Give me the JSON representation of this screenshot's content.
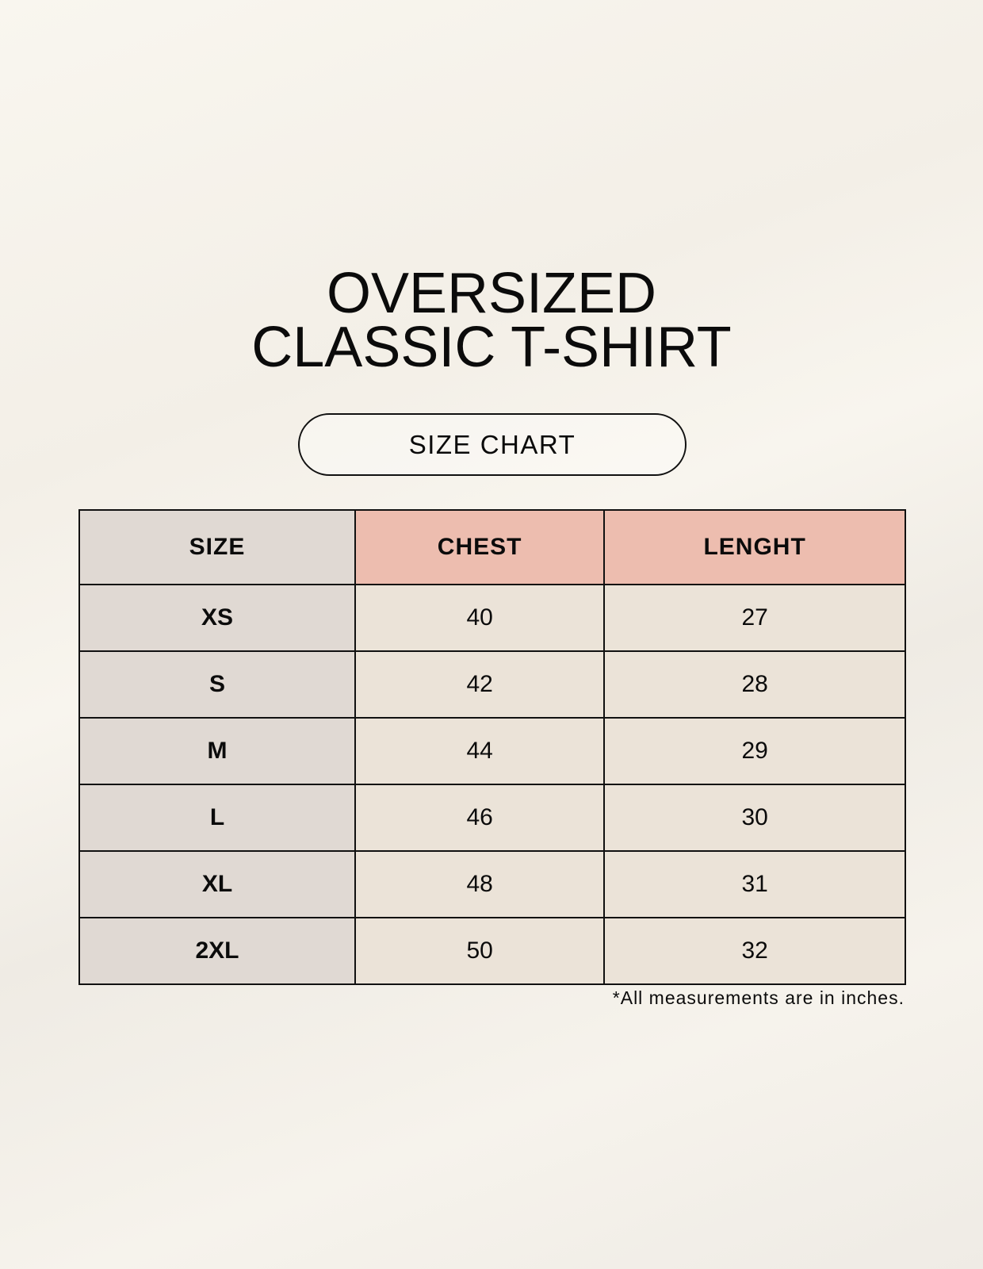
{
  "title_line1": "OVERSIZED",
  "title_line2": "CLASSIC T-SHIRT",
  "badge": "SIZE CHART",
  "table": {
    "headers": [
      "SIZE",
      "CHEST",
      "LENGHT"
    ],
    "rows": [
      [
        "XS",
        "40",
        "27"
      ],
      [
        "S",
        "42",
        "28"
      ],
      [
        "M",
        "44",
        "29"
      ],
      [
        "L",
        "46",
        "30"
      ],
      [
        "XL",
        "48",
        "31"
      ],
      [
        "2XL",
        "50",
        "32"
      ]
    ]
  },
  "footnote": "*All measurements are in inches.",
  "colors": {
    "size_column": "#e0d9d3",
    "header_accent": "#edbdaf",
    "value_cells": "#ebe3d8"
  }
}
